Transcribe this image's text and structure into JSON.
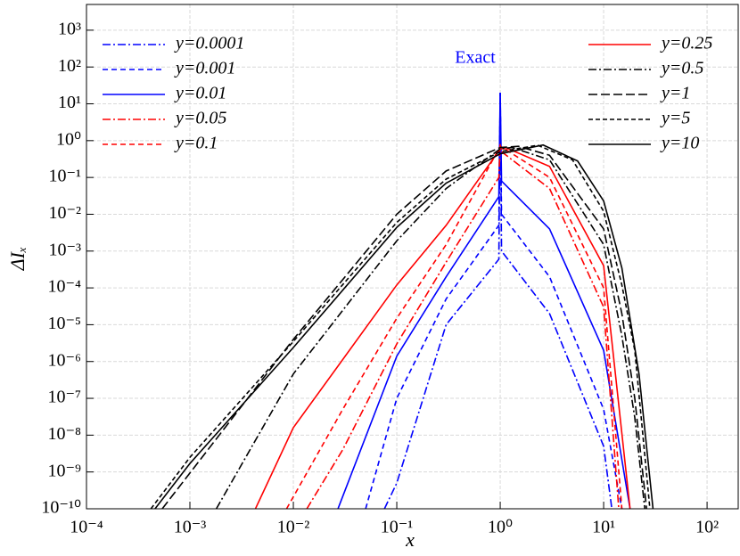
{
  "chart_data": {
    "type": "line",
    "log_x": true,
    "log_y": true,
    "grid": true,
    "xlabel": "x",
    "ylabel": "ΔIₓ",
    "xlim": [
      0.0001,
      200
    ],
    "ylim": [
      1e-10,
      5000
    ],
    "xticks": [
      {
        "value": 0.0001,
        "label": "10⁻⁴"
      },
      {
        "value": 0.001,
        "label": "10⁻³"
      },
      {
        "value": 0.01,
        "label": "10⁻²"
      },
      {
        "value": 0.1,
        "label": "10⁻¹"
      },
      {
        "value": 1,
        "label": "10⁰"
      },
      {
        "value": 10,
        "label": "10¹"
      },
      {
        "value": 100,
        "label": "10²"
      }
    ],
    "yticks": [
      {
        "value": 1e-10,
        "label": "10⁻¹⁰"
      },
      {
        "value": 1e-09,
        "label": "10⁻⁹"
      },
      {
        "value": 1e-08,
        "label": "10⁻⁸"
      },
      {
        "value": 1e-07,
        "label": "10⁻⁷"
      },
      {
        "value": 1e-06,
        "label": "10⁻⁶"
      },
      {
        "value": 1e-05,
        "label": "10⁻⁵"
      },
      {
        "value": 0.0001,
        "label": "10⁻⁴"
      },
      {
        "value": 0.001,
        "label": "10⁻³"
      },
      {
        "value": 0.01,
        "label": "10⁻²"
      },
      {
        "value": 0.1,
        "label": "10⁻¹"
      },
      {
        "value": 1,
        "label": "10⁰"
      },
      {
        "value": 10,
        "label": "10¹"
      },
      {
        "value": 100,
        "label": "10²"
      },
      {
        "value": 1000,
        "label": "10³"
      }
    ],
    "annotations": [
      {
        "text": "Exact",
        "color": "#0000ff"
      }
    ],
    "series": [
      {
        "name": "y=0.0001",
        "color": "#0000ff",
        "linestyle": "dashdot",
        "x": [
          0.076,
          0.1,
          0.3,
          0.97,
          1,
          1.03,
          3,
          10,
          12
        ],
        "values": [
          1e-10,
          5e-10,
          1e-05,
          0.0006,
          20,
          0.001,
          2e-05,
          5e-09,
          1e-10
        ]
      },
      {
        "name": "y=0.001",
        "color": "#0000ff",
        "linestyle": "dashed",
        "x": [
          0.05,
          0.1,
          0.3,
          0.97,
          1,
          1.03,
          3,
          10,
          15
        ],
        "values": [
          1e-10,
          1e-07,
          5e-05,
          0.005,
          20,
          0.01,
          0.0002,
          5e-08,
          1e-10
        ]
      },
      {
        "name": "y=0.01",
        "color": "#0000ff",
        "linestyle": "solid",
        "x": [
          0.027,
          0.1,
          0.3,
          0.97,
          1,
          1.03,
          3,
          10,
          18
        ],
        "values": [
          1e-10,
          1.4e-06,
          0.0002,
          0.03,
          20,
          0.08,
          0.004,
          2e-06,
          1e-10
        ]
      },
      {
        "name": "y=0.05",
        "color": "#ff0000",
        "linestyle": "dashdot",
        "x": [
          0.0135,
          0.03,
          0.1,
          0.3,
          0.97,
          1,
          1.03,
          3,
          10,
          14
        ],
        "values": [
          1e-10,
          4e-09,
          3e-06,
          0.0005,
          0.1,
          0.8,
          0.5,
          0.05,
          3e-05,
          1e-10
        ]
      },
      {
        "name": "y=0.1",
        "color": "#ff0000",
        "linestyle": "dashed",
        "x": [
          0.0086,
          0.03,
          0.1,
          0.3,
          1,
          1.1,
          3,
          10,
          15
        ],
        "values": [
          1e-10,
          5e-08,
          1.5e-05,
          0.0015,
          0.7,
          0.6,
          0.1,
          0.0001,
          1e-10
        ]
      },
      {
        "name": "y=0.25",
        "color": "#ff0000",
        "linestyle": "solid",
        "x": [
          0.0043,
          0.01,
          0.1,
          0.3,
          1,
          1.2,
          3,
          10,
          18
        ],
        "values": [
          1e-10,
          1.6e-08,
          0.00012,
          0.005,
          0.6,
          0.6,
          0.2,
          0.0004,
          1e-10
        ]
      },
      {
        "name": "y=0.5",
        "color": "#000000",
        "linestyle": "dashdot",
        "x": [
          0.0018,
          0.01,
          0.1,
          0.3,
          1,
          1.3,
          3,
          10,
          15,
          20,
          25
        ],
        "values": [
          1e-10,
          4.6e-07,
          0.0019,
          0.05,
          0.6,
          0.65,
          0.3,
          0.0015,
          5e-06,
          3e-08,
          1e-10
        ]
      },
      {
        "name": "y=1",
        "color": "#000000",
        "linestyle": "longdash",
        "x": [
          0.00054,
          0.01,
          0.1,
          0.3,
          1,
          1.5,
          3,
          10,
          15,
          20,
          26
        ],
        "values": [
          1e-10,
          4e-06,
          0.01,
          0.15,
          0.65,
          0.7,
          0.4,
          0.004,
          2e-05,
          1e-07,
          1e-10
        ]
      },
      {
        "name": "y=5",
        "color": "#000000",
        "linestyle": "shortdash",
        "x": [
          0.00042,
          0.001,
          0.01,
          0.1,
          0.3,
          1,
          2.3,
          5,
          10,
          15,
          20,
          28
        ],
        "values": [
          1e-10,
          2.5e-09,
          3.5e-06,
          0.006,
          0.09,
          0.5,
          0.75,
          0.3,
          0.012,
          0.00012,
          2e-06,
          1e-10
        ]
      },
      {
        "name": "y=10",
        "color": "#000000",
        "linestyle": "solid",
        "x": [
          0.00046,
          0.001,
          0.01,
          0.1,
          0.3,
          1,
          2.6,
          5.6,
          10,
          15,
          22,
          30
        ],
        "values": [
          1e-10,
          1.7e-09,
          2.4e-06,
          0.0044,
          0.07,
          0.44,
          0.76,
          0.28,
          0.023,
          0.00035,
          4.5e-07,
          1e-10
        ]
      }
    ]
  }
}
